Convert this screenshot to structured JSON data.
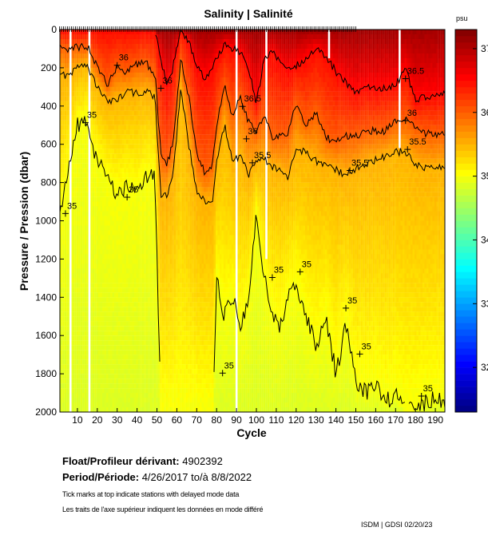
{
  "chart_data": {
    "type": "heatmap",
    "title": "Salinity | Salinité",
    "xlabel": "Cycle",
    "ylabel": "Pressure / Pression (dbar)",
    "colorbar_unit": "psu",
    "xlim": [
      1,
      195
    ],
    "ylim": [
      2000,
      0
    ],
    "clim": [
      31.3,
      37.3
    ],
    "colormap": "jet",
    "xticks": [
      10,
      20,
      30,
      40,
      50,
      60,
      70,
      80,
      90,
      100,
      110,
      120,
      130,
      140,
      150,
      160,
      170,
      180,
      190
    ],
    "yticks": [
      0,
      200,
      400,
      600,
      800,
      1000,
      1200,
      1400,
      1600,
      1800,
      2000
    ],
    "cticks": [
      32,
      33,
      34,
      35,
      36,
      37
    ],
    "contour_levels": [
      35,
      35.5,
      36,
      36.5
    ],
    "contour_depths_columns": [
      "cycle",
      "p_36.5",
      "p_36",
      "p_35.5",
      "p_35"
    ],
    "contour_depths": [
      [
        1,
        0,
        80,
        230,
        980
      ],
      [
        5,
        0,
        100,
        250,
        760
      ],
      [
        10,
        0,
        90,
        200,
        500
      ],
      [
        15,
        0,
        90,
        180,
        470
      ],
      [
        18,
        0,
        150,
        260,
        650
      ],
      [
        25,
        0,
        290,
        380,
        780
      ],
      [
        30,
        0,
        200,
        360,
        860
      ],
      [
        35,
        0,
        220,
        330,
        820
      ],
      [
        40,
        0,
        180,
        330,
        850
      ],
      [
        45,
        0,
        180,
        320,
        760
      ],
      [
        49,
        0,
        230,
        350,
        780
      ],
      [
        52,
        150,
        650,
        880,
        2000
      ],
      [
        55,
        300,
        700,
        860,
        2000
      ],
      [
        58,
        200,
        600,
        780,
        2000
      ],
      [
        62,
        0,
        150,
        300,
        2000
      ],
      [
        66,
        60,
        350,
        600,
        2000
      ],
      [
        70,
        200,
        650,
        850,
        2000
      ],
      [
        74,
        250,
        750,
        900,
        2000
      ],
      [
        78,
        200,
        700,
        880,
        2000
      ],
      [
        80,
        150,
        500,
        700,
        1300
      ],
      [
        84,
        80,
        300,
        500,
        1500
      ],
      [
        88,
        100,
        450,
        700,
        1400
      ],
      [
        92,
        120,
        350,
        650,
        1550
      ],
      [
        96,
        200,
        480,
        760,
        1400
      ],
      [
        100,
        380,
        530,
        700,
        950
      ],
      [
        104,
        150,
        450,
        680,
        1300
      ],
      [
        108,
        120,
        560,
        720,
        1500
      ],
      [
        112,
        180,
        560,
        730,
        1550
      ],
      [
        116,
        220,
        540,
        770,
        1400
      ],
      [
        120,
        190,
        390,
        630,
        1350
      ],
      [
        125,
        150,
        500,
        640,
        1500
      ],
      [
        130,
        100,
        430,
        690,
        1650
      ],
      [
        135,
        140,
        560,
        720,
        1500
      ],
      [
        140,
        220,
        590,
        735,
        1800
      ],
      [
        145,
        280,
        560,
        760,
        1550
      ],
      [
        150,
        330,
        555,
        730,
        1850
      ],
      [
        155,
        300,
        540,
        700,
        1900
      ],
      [
        160,
        317,
        527,
        680,
        1850
      ],
      [
        165,
        300,
        530,
        660,
        1950
      ],
      [
        170,
        292,
        480,
        640,
        1900
      ],
      [
        175,
        200,
        472,
        640,
        2000
      ],
      [
        180,
        375,
        520,
        700,
        1980
      ],
      [
        185,
        350,
        543,
        722,
        1950
      ],
      [
        190,
        347,
        547,
        722,
        1920
      ],
      [
        195,
        340,
        540,
        710,
        1950
      ]
    ],
    "surface_max_salinity": 37.1,
    "deep_min_salinity": 34.85,
    "missing_profiles": [
      {
        "cycle": 6.5,
        "to_pressure": 2000
      },
      {
        "cycle": 16,
        "to_pressure": 2000
      },
      {
        "cycle": 90,
        "to_pressure": 2000
      },
      {
        "cycle": 105,
        "to_pressure": 1200
      },
      {
        "cycle": 136.5,
        "to_pressure": 150
      },
      {
        "cycle": 172,
        "to_pressure": 620
      }
    ],
    "delayed_mode_cycles": [
      1,
      150
    ],
    "contour_labels": [
      {
        "text": "36.5",
        "cycle": 175,
        "pressure": 240
      },
      {
        "text": "36",
        "cycle": 175,
        "pressure": 460
      },
      {
        "text": "35.5",
        "cycle": 176,
        "pressure": 610
      },
      {
        "text": "35.5",
        "cycle": 147,
        "pressure": 720
      },
      {
        "text": "36.5",
        "cycle": 93,
        "pressure": 385
      },
      {
        "text": "36",
        "cycle": 95,
        "pressure": 555
      },
      {
        "text": "35.5",
        "cycle": 98,
        "pressure": 680
      },
      {
        "text": "36",
        "cycle": 52,
        "pressure": 290
      },
      {
        "text": "36",
        "cycle": 30,
        "pressure": 170
      },
      {
        "text": "35",
        "cycle": 4,
        "pressure": 945
      },
      {
        "text": "35",
        "cycle": 14,
        "pressure": 470
      },
      {
        "text": "35",
        "cycle": 35,
        "pressure": 860
      },
      {
        "text": "35",
        "cycle": 108,
        "pressure": 1280
      },
      {
        "text": "35",
        "cycle": 122,
        "pressure": 1250
      },
      {
        "text": "35",
        "cycle": 83,
        "pressure": 1780
      },
      {
        "text": "35",
        "cycle": 145,
        "pressure": 1440
      },
      {
        "text": "35",
        "cycle": 152,
        "pressure": 1680
      },
      {
        "text": "35",
        "cycle": 183,
        "pressure": 1900
      }
    ]
  },
  "info": {
    "float_label": "Float/Profileur dérivant:",
    "float_id": "4902392",
    "period_label": "Period/Période:",
    "period_value": "4/26/2017  to/à  8/8/2022",
    "note_en": "Tick marks at top indicate stations with delayed mode data",
    "note_fr": "Les traits de l'axe supérieur indiquent les données en mode différé",
    "stamp": "ISDM | GDSI  02/20/23"
  }
}
